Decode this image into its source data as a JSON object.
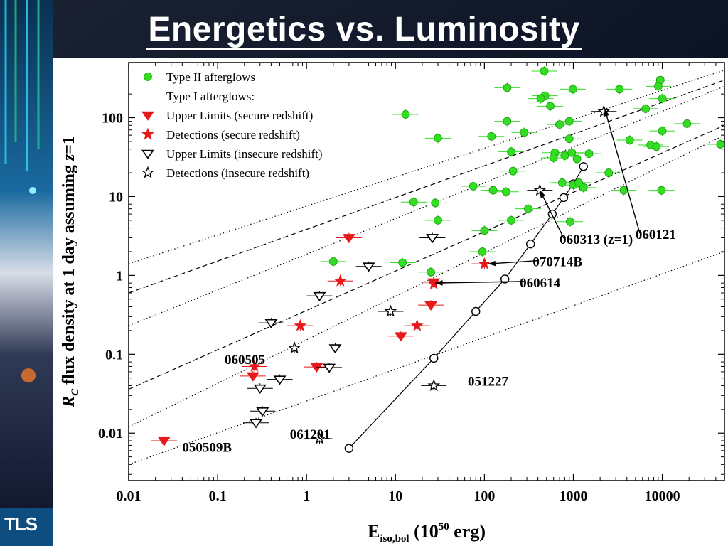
{
  "slide": {
    "title": "Energetics vs. Luminosity",
    "logo": "TLS"
  },
  "colors": {
    "green": "#33dd22",
    "red": "#e8191a",
    "black": "#000000",
    "panel": "#ffffff"
  },
  "chart_data": {
    "type": "scatter",
    "xscale": "log",
    "yscale": "log",
    "xlim": [
      0.01,
      50000
    ],
    "ylim": [
      0.0025,
      500
    ],
    "xticks": [
      {
        "v": 0.01,
        "label": "0.01"
      },
      {
        "v": 0.1,
        "label": "0.1"
      },
      {
        "v": 1,
        "label": "1"
      },
      {
        "v": 10,
        "label": "10"
      },
      {
        "v": 100,
        "label": "100"
      },
      {
        "v": 1000,
        "label": "1000"
      },
      {
        "v": 10000,
        "label": "10000"
      }
    ],
    "yticks": [
      {
        "v": 0.01,
        "label": "0.01"
      },
      {
        "v": 0.1,
        "label": "0.1"
      },
      {
        "v": 1,
        "label": "1"
      },
      {
        "v": 10,
        "label": "10"
      },
      {
        "v": 100,
        "label": "100"
      }
    ],
    "ylabel": "R_C flux density at 1 day assuming z=1",
    "ylabel_parts": [
      "R",
      "C",
      " flux density at 1 day assuming ",
      "z",
      "=1"
    ],
    "xlabel": "E_iso,bol (10^50 erg)",
    "xlabel_parts": [
      "E",
      "iso,bol",
      " (10",
      "50",
      " erg)"
    ],
    "legend": [
      {
        "label": "Type II afterglows",
        "marker": "circle",
        "color": "#33dd22"
      },
      {
        "label": "Type I afterglows:",
        "marker": "none",
        "color": "#000000"
      },
      {
        "label": "Upper Limits (secure redshift)",
        "marker": "tri-filled",
        "color": "#e8191a"
      },
      {
        "label": "Detections (secure redshift)",
        "marker": "star-filled",
        "color": "#e8191a"
      },
      {
        "label": "Upper Limits (insecure redshift)",
        "marker": "tri-open",
        "color": "#000000"
      },
      {
        "label": "Detections (insecure redshift)",
        "marker": "star-open",
        "color": "#000000"
      }
    ],
    "series": [
      {
        "name": "Type II afterglows",
        "marker": "circle",
        "color": "#33dd22",
        "points": [
          {
            "x": 470,
            "y": 390
          },
          {
            "x": 9500,
            "y": 300
          },
          {
            "x": 9000,
            "y": 250
          },
          {
            "x": 180,
            "y": 240
          },
          {
            "x": 990,
            "y": 230
          },
          {
            "x": 3300,
            "y": 230
          },
          {
            "x": 480,
            "y": 190
          },
          {
            "x": 430,
            "y": 175
          },
          {
            "x": 10000,
            "y": 175
          },
          {
            "x": 550,
            "y": 140
          },
          {
            "x": 6500,
            "y": 130
          },
          {
            "x": 13,
            "y": 110
          },
          {
            "x": 900,
            "y": 90
          },
          {
            "x": 180,
            "y": 90
          },
          {
            "x": 19000,
            "y": 84
          },
          {
            "x": 700,
            "y": 82
          },
          {
            "x": 280,
            "y": 65
          },
          {
            "x": 10000,
            "y": 68
          },
          {
            "x": 30,
            "y": 55
          },
          {
            "x": 120,
            "y": 58
          },
          {
            "x": 900,
            "y": 54
          },
          {
            "x": 4300,
            "y": 52
          },
          {
            "x": 45000,
            "y": 46
          },
          {
            "x": 7400,
            "y": 45
          },
          {
            "x": 8600,
            "y": 43
          },
          {
            "x": 200,
            "y": 37
          },
          {
            "x": 620,
            "y": 36
          },
          {
            "x": 1500,
            "y": 35
          },
          {
            "x": 960,
            "y": 36
          },
          {
            "x": 800,
            "y": 33
          },
          {
            "x": 600,
            "y": 31
          },
          {
            "x": 1100,
            "y": 30
          },
          {
            "x": 2500,
            "y": 20
          },
          {
            "x": 210,
            "y": 21
          },
          {
            "x": 750,
            "y": 15
          },
          {
            "x": 1000,
            "y": 14
          },
          {
            "x": 1300,
            "y": 13
          },
          {
            "x": 1150,
            "y": 15
          },
          {
            "x": 75,
            "y": 13.5
          },
          {
            "x": 125,
            "y": 12
          },
          {
            "x": 175,
            "y": 11.5
          },
          {
            "x": 3700,
            "y": 12
          },
          {
            "x": 9800,
            "y": 12
          },
          {
            "x": 16,
            "y": 8.5
          },
          {
            "x": 28,
            "y": 8.3
          },
          {
            "x": 310,
            "y": 7
          },
          {
            "x": 920,
            "y": 4.8
          },
          {
            "x": 100,
            "y": 3.7
          },
          {
            "x": 95,
            "y": 2
          },
          {
            "x": 200,
            "y": 5
          },
          {
            "x": 30,
            "y": 5
          },
          {
            "x": 2,
            "y": 1.5
          },
          {
            "x": 12,
            "y": 1.45
          },
          {
            "x": 25,
            "y": 1.1
          }
        ]
      },
      {
        "name": "Upper Limits (secure redshift)",
        "marker": "tri-filled",
        "color": "#e8191a",
        "points": [
          {
            "x": 3,
            "y": 3
          },
          {
            "x": 25,
            "y": 0.42
          },
          {
            "x": 11.5,
            "y": 0.17
          },
          {
            "x": 0.25,
            "y": 0.053
          },
          {
            "x": 1.3,
            "y": 0.069
          },
          {
            "x": 0.025,
            "y": 0.008
          },
          {
            "x": 27,
            "y": 0.82
          }
        ]
      },
      {
        "name": "Detections (secure redshift)",
        "marker": "star-filled",
        "color": "#e8191a",
        "points": [
          {
            "x": 2.4,
            "y": 0.85
          },
          {
            "x": 100,
            "y": 1.4
          },
          {
            "x": 27,
            "y": 0.78
          },
          {
            "x": 0.85,
            "y": 0.23
          },
          {
            "x": 17.5,
            "y": 0.23
          },
          {
            "x": 0.26,
            "y": 0.07
          }
        ]
      },
      {
        "name": "Upper Limits (insecure redshift)",
        "marker": "tri-open",
        "color": "#000000",
        "points": [
          {
            "x": 26,
            "y": 3
          },
          {
            "x": 5,
            "y": 1.3
          },
          {
            "x": 1.4,
            "y": 0.55
          },
          {
            "x": 0.4,
            "y": 0.25
          },
          {
            "x": 2.1,
            "y": 0.12
          },
          {
            "x": 1.8,
            "y": 0.068
          },
          {
            "x": 0.5,
            "y": 0.048
          },
          {
            "x": 0.3,
            "y": 0.037
          },
          {
            "x": 0.32,
            "y": 0.019
          },
          {
            "x": 0.27,
            "y": 0.0135
          }
        ]
      },
      {
        "name": "Detections (insecure redshift)",
        "marker": "star-open",
        "color": "#000000",
        "points": [
          {
            "x": 8.8,
            "y": 0.35
          },
          {
            "x": 0.73,
            "y": 0.12
          },
          {
            "x": 27,
            "y": 0.04
          },
          {
            "x": 1.4,
            "y": 0.0085
          },
          {
            "x": 420,
            "y": 12
          },
          {
            "x": 2200,
            "y": 120
          }
        ]
      }
    ],
    "evolution_track": [
      {
        "x": 3,
        "y": 0.0064
      },
      {
        "x": 27,
        "y": 0.089
      },
      {
        "x": 80,
        "y": 0.35
      },
      {
        "x": 170,
        "y": 0.9
      },
      {
        "x": 330,
        "y": 2.5
      },
      {
        "x": 580,
        "y": 6
      },
      {
        "x": 780,
        "y": 9.7
      },
      {
        "x": 1000,
        "y": 14.5
      },
      {
        "x": 1300,
        "y": 24
      }
    ],
    "reference_lines": [
      {
        "style": "dotted",
        "x": [
          0.01,
          50000
        ],
        "y": [
          1.4,
          400
        ]
      },
      {
        "style": "dashed",
        "x": [
          0.01,
          50000
        ],
        "y": [
          0.6,
          300
        ]
      },
      {
        "style": "dotted",
        "x": [
          0.01,
          50000
        ],
        "y": [
          0.23,
          250
        ]
      },
      {
        "style": "dashed",
        "x": [
          0.01,
          50000
        ],
        "y": [
          0.036,
          80
        ]
      },
      {
        "style": "dotted",
        "x": [
          0.01,
          50000
        ],
        "y": [
          0.012,
          60
        ]
      },
      {
        "style": "dotted",
        "x": [
          0.01,
          50000
        ],
        "y": [
          0.004,
          2
        ]
      }
    ],
    "annotations": [
      {
        "text": "060121",
        "tx": 5000,
        "ty": 2.9,
        "ax": 2250,
        "ay": 130
      },
      {
        "text": "060313 (z=1)",
        "tx": 700,
        "ty": 2.5,
        "ax": 420,
        "ay": 12
      },
      {
        "text": "070714B",
        "tx": 350,
        "ty": 1.3,
        "ax": 110,
        "ay": 1.4
      },
      {
        "text": "060614",
        "tx": 250,
        "ty": 0.71,
        "ax": 28,
        "ay": 0.8
      },
      {
        "text": "060505",
        "tx": 0.12,
        "ty": 0.075,
        "ax": null,
        "ay": null
      },
      {
        "text": "051227",
        "tx": 65,
        "ty": 0.04,
        "ax": null,
        "ay": null
      },
      {
        "text": "061201",
        "tx": 0.65,
        "ty": 0.0085,
        "ax": null,
        "ay": null
      },
      {
        "text": "050509B",
        "tx": 0.04,
        "ty": 0.0058,
        "ax": null,
        "ay": null
      }
    ]
  }
}
